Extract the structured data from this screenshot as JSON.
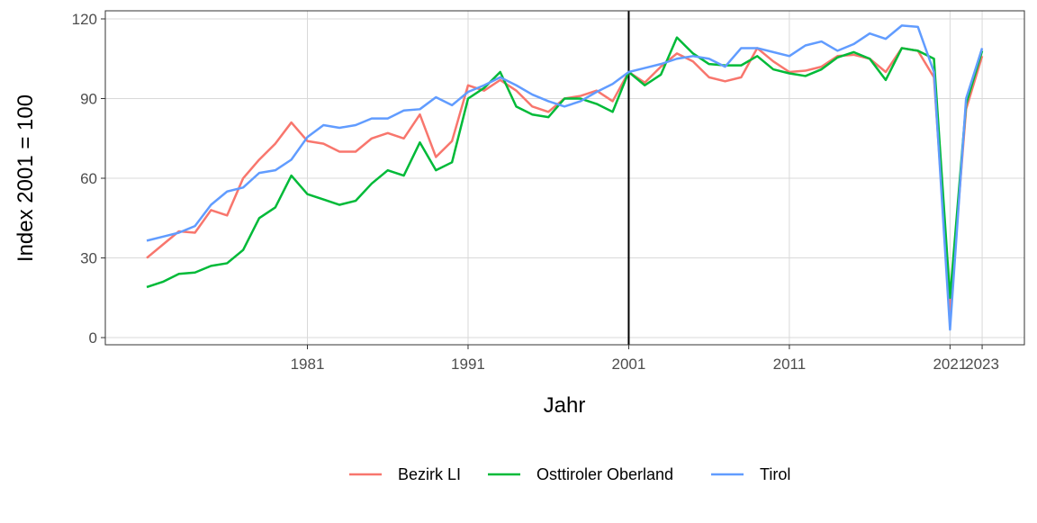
{
  "chart_data": {
    "type": "line",
    "x_label": "Jahr",
    "y_label": "Index 2001 = 100",
    "x": [
      1971,
      1972,
      1973,
      1974,
      1975,
      1976,
      1977,
      1978,
      1979,
      1980,
      1981,
      1982,
      1983,
      1984,
      1985,
      1986,
      1987,
      1988,
      1989,
      1990,
      1991,
      1992,
      1993,
      1994,
      1995,
      1996,
      1997,
      1998,
      1999,
      2000,
      2001,
      2002,
      2003,
      2004,
      2005,
      2006,
      2007,
      2008,
      2009,
      2010,
      2011,
      2012,
      2013,
      2014,
      2015,
      2016,
      2017,
      2018,
      2019,
      2020,
      2021,
      2022,
      2023
    ],
    "series": [
      {
        "name": "Bezirk LI",
        "color": "#F8766D",
        "values": [
          30,
          35,
          40,
          39.5,
          48,
          46,
          60,
          67,
          73,
          81,
          74,
          73,
          70,
          70,
          75,
          77,
          75,
          84,
          68,
          74,
          95,
          93,
          97,
          93,
          87,
          85,
          90,
          91,
          93,
          89,
          100,
          96,
          102,
          107,
          104,
          98,
          96.5,
          98,
          109,
          104,
          100,
          100.5,
          102,
          106,
          106.5,
          105,
          100,
          109,
          108,
          98,
          10,
          86,
          106
        ]
      },
      {
        "name": "Osttiroler Oberland",
        "color": "#00BA38",
        "values": [
          19,
          21,
          24,
          24.5,
          27,
          28,
          33,
          45,
          49,
          61,
          54,
          52,
          50,
          51.5,
          58,
          63,
          61,
          73.5,
          63,
          66,
          90,
          94,
          100,
          87,
          84,
          83,
          90,
          90,
          88,
          85,
          100,
          95,
          99,
          113,
          107,
          103,
          102.5,
          102.5,
          106,
          101,
          99.5,
          98.5,
          101,
          105.5,
          107.5,
          105,
          97,
          109,
          108,
          105,
          15,
          88,
          108
        ]
      },
      {
        "name": "Tirol",
        "color": "#619CFF",
        "values": [
          36.5,
          38,
          39.5,
          42,
          50,
          55,
          56.5,
          62,
          63,
          67,
          75.5,
          80,
          79,
          80,
          82.5,
          82.5,
          85.5,
          86,
          90.5,
          87.5,
          92.5,
          95,
          98,
          95,
          91.5,
          89,
          87,
          89,
          92.5,
          95.5,
          100,
          101.5,
          103,
          105,
          106,
          105,
          102,
          109,
          109,
          107.5,
          106,
          110,
          111.5,
          108,
          110.5,
          114.5,
          112.5,
          117.5,
          117,
          100,
          3,
          90,
          109
        ]
      }
    ],
    "xlim": [
      1968.42,
      2025.63
    ],
    "ylim": [
      -2.7,
      123.05
    ],
    "xticks": [
      1981,
      1991,
      2001,
      2011,
      2021,
      2023
    ],
    "yticks": [
      0,
      30,
      60,
      90,
      120
    ],
    "vline": 2001,
    "grid": true,
    "legend": "bottom"
  }
}
